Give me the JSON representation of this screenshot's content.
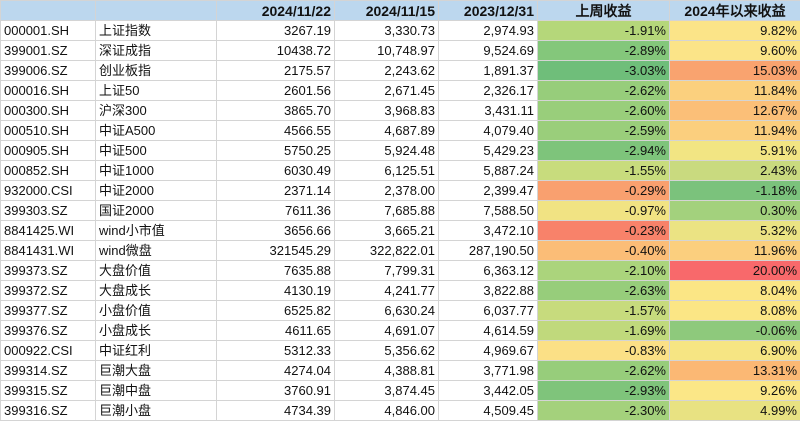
{
  "headers": [
    "",
    "",
    "2024/11/22",
    "2024/11/15",
    "2023/12/31",
    "上周收益",
    "2024年以来收益"
  ],
  "rows": [
    {
      "code": "000001.SH",
      "name": "上证指数",
      "v1": "3267.19",
      "v2": "3,330.73",
      "v3": "2,974.93",
      "wk": "-1.91%",
      "ytd": "9.82%",
      "wk_color": "#b5d77a",
      "ytd_color": "#fbe488"
    },
    {
      "code": "399001.SZ",
      "name": "深证成指",
      "v1": "10438.72",
      "v2": "10,748.97",
      "v3": "9,524.69",
      "wk": "-2.89%",
      "ytd": "9.60%",
      "wk_color": "#84c77b",
      "ytd_color": "#fbe488"
    },
    {
      "code": "399006.SZ",
      "name": "创业板指",
      "v1": "2175.57",
      "v2": "2,243.62",
      "v3": "1,891.37",
      "wk": "-3.03%",
      "ytd": "15.03%",
      "wk_color": "#6fbe7a",
      "ytd_color": "#f9a36f"
    },
    {
      "code": "000016.SH",
      "name": "上证50",
      "v1": "2601.56",
      "v2": "2,671.45",
      "v3": "2,326.17",
      "wk": "-2.62%",
      "ytd": "11.84%",
      "wk_color": "#97cd7b",
      "ytd_color": "#fbd07e"
    },
    {
      "code": "000300.SH",
      "name": "沪深300",
      "v1": "3865.70",
      "v2": "3,968.83",
      "v3": "3,431.11",
      "wk": "-2.60%",
      "ytd": "12.67%",
      "wk_color": "#99ce7b",
      "ytd_color": "#fbbf78"
    },
    {
      "code": "000510.SH",
      "name": "中证A500",
      "v1": "4566.55",
      "v2": "4,687.89",
      "v3": "4,079.40",
      "wk": "-2.59%",
      "ytd": "11.94%",
      "wk_color": "#9ace7b",
      "ytd_color": "#fbcf7e"
    },
    {
      "code": "000905.SH",
      "name": "中证500",
      "v1": "5750.25",
      "v2": "5,924.48",
      "v3": "5,429.23",
      "wk": "-2.94%",
      "ytd": "5.91%",
      "wk_color": "#7ec47b",
      "ytd_color": "#f2e583"
    },
    {
      "code": "000852.SH",
      "name": "中证1000",
      "v1": "6030.49",
      "v2": "6,125.51",
      "v3": "5,887.24",
      "wk": "-1.55%",
      "ytd": "2.43%",
      "wk_color": "#c8dc7d",
      "ytd_color": "#c9da7f"
    },
    {
      "code": "932000.CSI",
      "name": "中证2000",
      "v1": "2371.14",
      "v2": "2,378.00",
      "v3": "2,399.47",
      "wk": "-0.29%",
      "ytd": "-1.18%",
      "wk_color": "#f9a06f",
      "ytd_color": "#7bc27c"
    },
    {
      "code": "399303.SZ",
      "name": "国证2000",
      "v1": "7611.36",
      "v2": "7,685.88",
      "v3": "7,588.50",
      "wk": "-0.97%",
      "ytd": "0.30%",
      "wk_color": "#f1e383",
      "ytd_color": "#a3d17d"
    },
    {
      "code": "8841425.WI",
      "name": "wind小市值",
      "v1": "3656.66",
      "v2": "3,665.21",
      "v3": "3,472.10",
      "wk": "-0.23%",
      "ytd": "5.32%",
      "wk_color": "#f8826a",
      "ytd_color": "#ebe383"
    },
    {
      "code": "8841431.WI",
      "name": "wind微盘",
      "v1": "321545.29",
      "v2": "322,822.01",
      "v3": "287,190.50",
      "wk": "-0.40%",
      "ytd": "11.96%",
      "wk_color": "#fbbd77",
      "ytd_color": "#fbcf7e"
    },
    {
      "code": "399373.SZ",
      "name": "大盘价值",
      "v1": "7635.88",
      "v2": "7,799.31",
      "v3": "6,363.12",
      "wk": "-2.10%",
      "ytd": "20.00%",
      "wk_color": "#abd47c",
      "ytd_color": "#f8696b"
    },
    {
      "code": "399372.SZ",
      "name": "大盘成长",
      "v1": "4130.19",
      "v2": "4,241.77",
      "v3": "3,822.88",
      "wk": "-2.63%",
      "ytd": "8.04%",
      "wk_color": "#97cd7b",
      "ytd_color": "#fbe685"
    },
    {
      "code": "399377.SZ",
      "name": "小盘价值",
      "v1": "6525.82",
      "v2": "6,630.24",
      "v3": "6,037.77",
      "wk": "-1.57%",
      "ytd": "8.08%",
      "wk_color": "#c7db7d",
      "ytd_color": "#fbe685"
    },
    {
      "code": "399376.SZ",
      "name": "小盘成长",
      "v1": "4611.65",
      "v2": "4,691.07",
      "v3": "4,614.59",
      "wk": "-1.69%",
      "ytd": "-0.06%",
      "wk_color": "#c0d97c",
      "ytd_color": "#8ec97c"
    },
    {
      "code": "000922.CSI",
      "name": "中证红利",
      "v1": "5312.33",
      "v2": "5,356.62",
      "v3": "4,969.67",
      "wk": "-0.83%",
      "ytd": "6.90%",
      "wk_color": "#fbe086",
      "ytd_color": "#f6e583"
    },
    {
      "code": "399314.SZ",
      "name": "巨潮大盘",
      "v1": "4274.04",
      "v2": "4,388.81",
      "v3": "3,771.98",
      "wk": "-2.62%",
      "ytd": "13.31%",
      "wk_color": "#97cd7b",
      "ytd_color": "#fbb874"
    },
    {
      "code": "399315.SZ",
      "name": "巨潮中盘",
      "v1": "3760.91",
      "v2": "3,874.45",
      "v3": "3,442.05",
      "wk": "-2.93%",
      "ytd": "9.26%",
      "wk_color": "#7fc47b",
      "ytd_color": "#fbe787"
    },
    {
      "code": "399316.SZ",
      "name": "巨潮小盘",
      "v1": "4734.39",
      "v2": "4,846.00",
      "v3": "4,509.45",
      "wk": "-2.30%",
      "ytd": "4.99%",
      "wk_color": "#a4d17c",
      "ytd_color": "#e8e282"
    }
  ]
}
